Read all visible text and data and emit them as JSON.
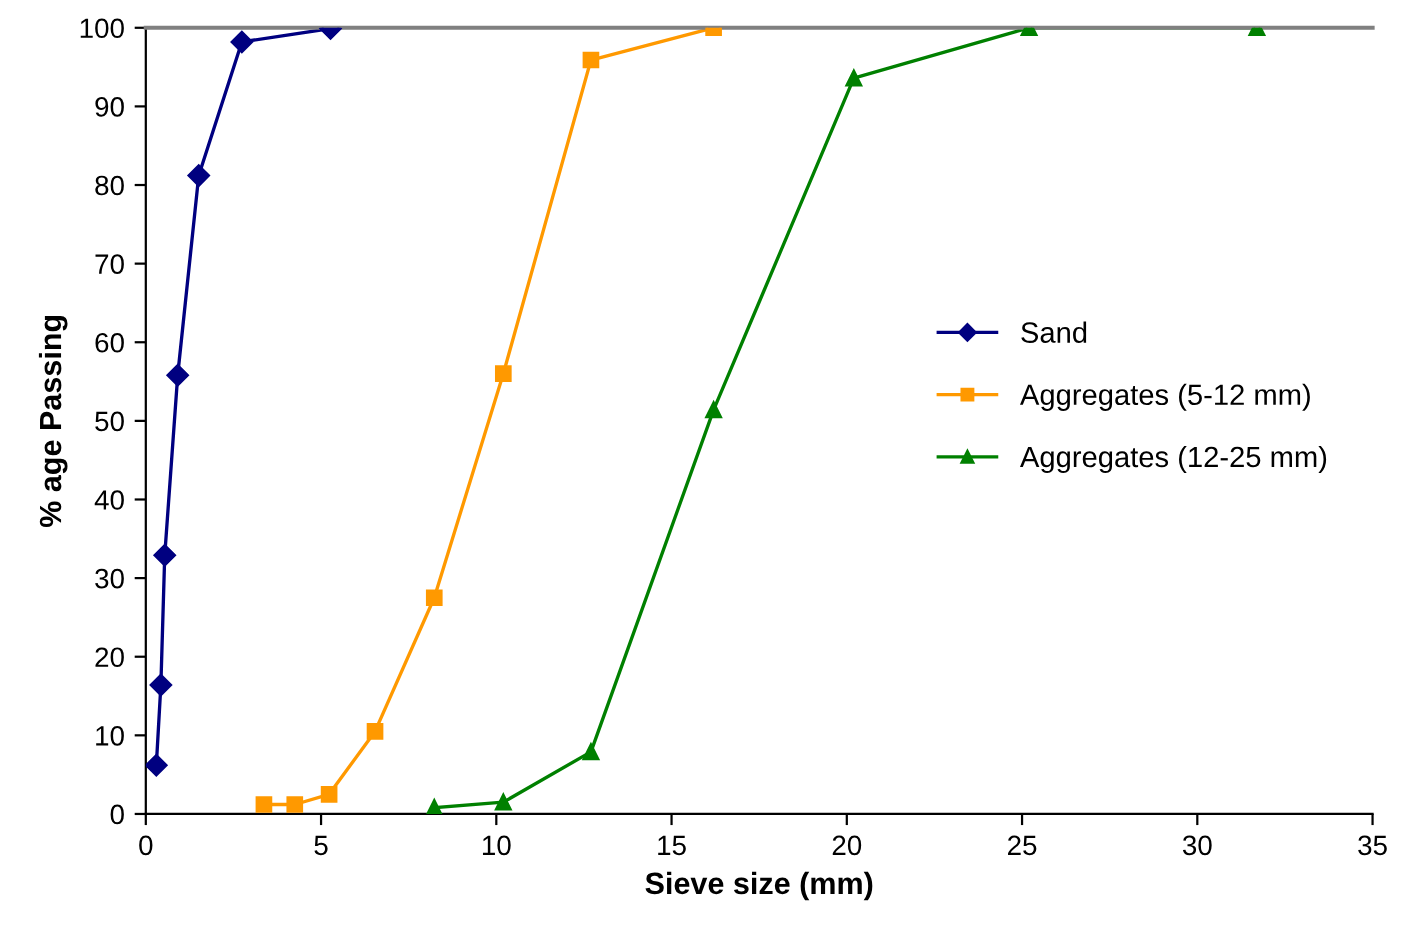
{
  "chart_data": {
    "type": "line",
    "xlabel": "Sieve size (mm)",
    "ylabel": "% age Passing",
    "xlim": [
      0,
      35
    ],
    "xticks": [
      0,
      5,
      10,
      15,
      20,
      25,
      30,
      35
    ],
    "ylim": [
      0,
      100
    ],
    "yticks": [
      0,
      10,
      20,
      30,
      40,
      50,
      60,
      70,
      80,
      90,
      100
    ],
    "grid": false,
    "legend": "right",
    "line_style": "solid",
    "series": [
      {
        "name": "Sand",
        "color": "#000080",
        "marker": "diamond",
        "x": [
          0.3,
          0.43,
          0.54,
          0.91,
          1.51,
          2.74,
          5.27
        ],
        "values": [
          6.2,
          16.4,
          32.9,
          55.8,
          81.2,
          98.2,
          99.9
        ]
      },
      {
        "name": "Aggregates (5-12 mm)",
        "color": "#ff9900",
        "marker": "square",
        "x": [
          3.37,
          4.25,
          5.23,
          6.54,
          8.23,
          10.2,
          12.7,
          16.2
        ],
        "values": [
          1.2,
          1.2,
          2.5,
          10.5,
          27.5,
          56.0,
          95.9,
          100
        ]
      },
      {
        "name": "Aggregates (12-25 mm)",
        "color": "#008000",
        "marker": "triangle",
        "x": [
          8.23,
          10.2,
          12.7,
          16.2,
          20.2,
          25.2,
          31.7
        ],
        "values": [
          0.8,
          1.5,
          7.9,
          51.4,
          93.6,
          100,
          100
        ]
      }
    ]
  }
}
